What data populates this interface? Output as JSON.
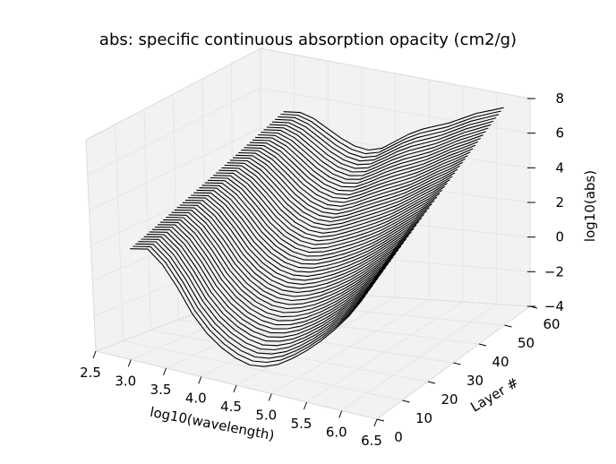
{
  "chart_data": {
    "type": "line",
    "projection": "3d-waterfall",
    "title": "abs: specific continuous absorption opacity (cm2/g)",
    "xlabel": "log10(wavelength)",
    "ylabel": "Layer #",
    "zlabel": "log10(abs)",
    "xlim": [
      2.5,
      6.5
    ],
    "ylim": [
      0,
      60
    ],
    "zlim": [
      -4,
      8
    ],
    "x_ticks": [
      "2.5",
      "3.0",
      "3.5",
      "4.0",
      "4.5",
      "5.0",
      "5.5",
      "6.0",
      "6.5"
    ],
    "y_ticks": [
      "0",
      "10",
      "20",
      "30",
      "40",
      "50",
      "60"
    ],
    "z_ticks": [
      "−4",
      "−2",
      "0",
      "2",
      "4",
      "6",
      "8"
    ],
    "grid": true,
    "line_color": "#000000",
    "pane_color": "#f2f2f2",
    "layers": [
      0,
      55
    ],
    "wavelength_samples": [
      3.05,
      3.3,
      3.5,
      3.7,
      3.9,
      4.1,
      4.3,
      4.5,
      4.7,
      4.9,
      5.1,
      5.3,
      5.5,
      5.7,
      5.9,
      6.1,
      6.3
    ],
    "profile_first_layer": [
      2.3,
      2.5,
      1.8,
      0.7,
      -0.6,
      -1.5,
      -2.1,
      -2.5,
      -2.7,
      -2.6,
      -2.3,
      -1.8,
      -1.2,
      -0.5,
      0.3,
      1.2,
      2.3
    ],
    "profile_last_layer": [
      5.5,
      5.6,
      5.4,
      5.0,
      4.6,
      4.3,
      4.2,
      4.4,
      4.9,
      5.4,
      5.8,
      6.1,
      6.4,
      6.8,
      7.2,
      7.5,
      7.8
    ]
  }
}
